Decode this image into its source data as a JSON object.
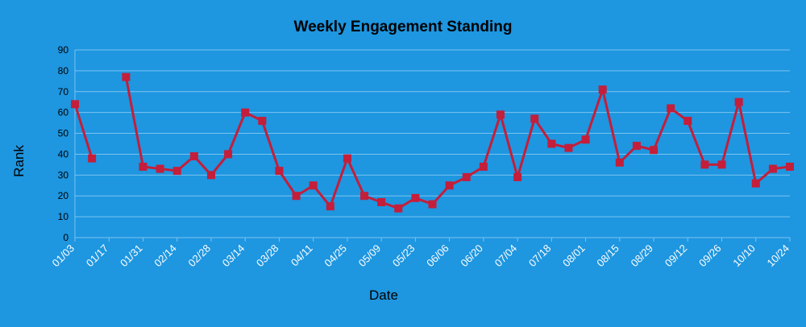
{
  "chart_data": {
    "type": "line",
    "title": "Weekly Engagement Standing",
    "xlabel": "Date",
    "ylabel": "Rank",
    "ylim": [
      0,
      90
    ],
    "yticks": [
      0,
      10,
      20,
      30,
      40,
      50,
      60,
      70,
      80,
      90
    ],
    "grid": true,
    "x": [
      "01/03",
      "01/10",
      "01/17",
      "01/24",
      "01/31",
      "02/07",
      "02/14",
      "02/21",
      "02/28",
      "03/07",
      "03/14",
      "03/21",
      "03/28",
      "04/04",
      "04/11",
      "04/18",
      "04/25",
      "05/02",
      "05/09",
      "05/16",
      "05/23",
      "05/30",
      "06/06",
      "06/13",
      "06/20",
      "06/27",
      "07/04",
      "07/11",
      "07/18",
      "07/25",
      "08/01",
      "08/08",
      "08/15",
      "08/22",
      "08/29",
      "09/05",
      "09/12",
      "09/19",
      "09/26",
      "10/03",
      "10/10",
      "10/17",
      "10/24"
    ],
    "tick_labels": [
      "01/03",
      "01/17",
      "01/31",
      "02/14",
      "02/28",
      "03/14",
      "03/28",
      "04/11",
      "04/25",
      "05/09",
      "05/23",
      "06/06",
      "06/20",
      "07/04",
      "07/18",
      "08/01",
      "08/15",
      "08/29",
      "09/12",
      "09/26",
      "10/10",
      "10/24"
    ],
    "series": [
      {
        "values": [
          64,
          38,
          null,
          77,
          34,
          33,
          32,
          39,
          30,
          40,
          60,
          56,
          32,
          20,
          25,
          15,
          38,
          20,
          17,
          14,
          19,
          16,
          25,
          29,
          34,
          59,
          29,
          57,
          45,
          43,
          47,
          71,
          36,
          44,
          42,
          62,
          56,
          35,
          35,
          65,
          26,
          33,
          34
        ]
      }
    ]
  },
  "colors": {
    "background": "#1e96e0",
    "line": "#c41e3a",
    "grid": "#7cc3ef",
    "text": "#000000",
    "tick_x": "#ffffff"
  }
}
